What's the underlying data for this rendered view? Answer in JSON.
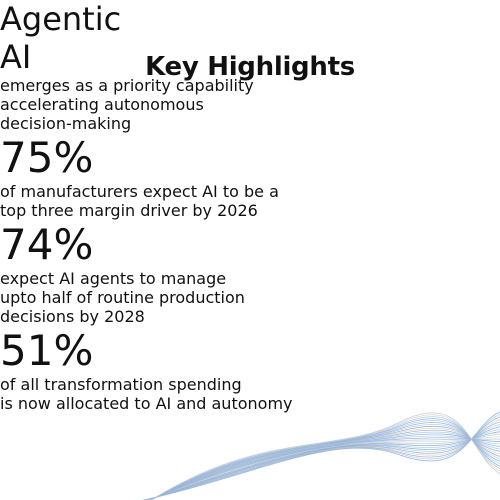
{
  "title": "Key Highlights",
  "items": [
    {
      "figure": [
        "Agentic",
        "AI"
      ],
      "text": [
        "emerges as a priority capability",
        "accelerating autonomous",
        "decision-making"
      ]
    },
    {
      "figure": [
        "75%"
      ],
      "text": [
        "of manufacturers expect AI to be a",
        "top three margin driver by 2026"
      ]
    },
    {
      "figure": [
        "74%"
      ],
      "text": [
        "expect AI agents to manage",
        "upto half of routine production",
        "decisions by 2028"
      ]
    },
    {
      "figure": [
        "51%"
      ],
      "text": [
        "of all transformation spending",
        "is now allocated to AI and autonomy"
      ]
    }
  ]
}
